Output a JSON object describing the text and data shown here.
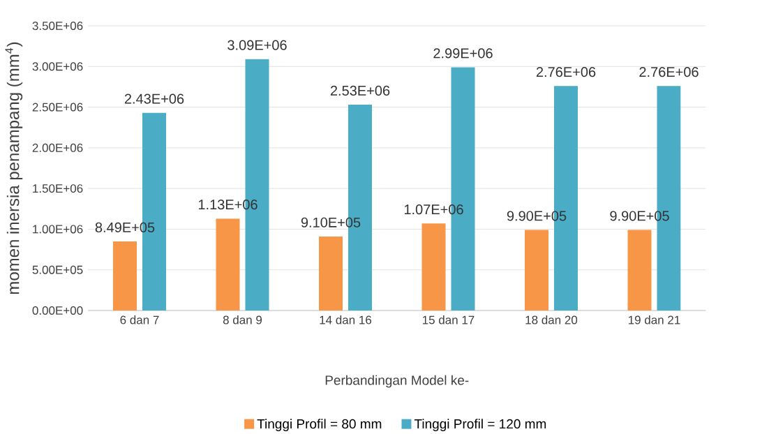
{
  "chart_data": {
    "type": "bar",
    "xlabel": "Perbandingan Model ke-",
    "ylabel": "momen inersia penampang (mm$^{4}$)",
    "categories": [
      "6 dan 7",
      "8 dan 9",
      "14 dan 16",
      "15 dan 17",
      "18 dan 20",
      "19 dan 21"
    ],
    "series": [
      {
        "name": "Tinggi Profil = 80 mm",
        "color": "#f79646",
        "values": [
          849000,
          1130000,
          910000,
          1070000,
          990000,
          990000
        ],
        "value_labels": [
          "8.49E+05",
          "1.13E+06",
          "9.10E+05",
          "1.07E+06",
          "9.90E+05",
          "9.90E+05"
        ]
      },
      {
        "name": "Tinggi Profil = 120 mm",
        "color": "#4bacc6",
        "values": [
          2430000,
          3090000,
          2530000,
          2990000,
          2760000,
          2760000
        ],
        "value_labels": [
          "2.43E+06",
          "3.09E+06",
          "2.53E+06",
          "2.99E+06",
          "2.76E+06",
          "2.76E+06"
        ]
      }
    ],
    "ylim": [
      0,
      3500000
    ],
    "yticks": [
      {
        "value": 0,
        "label": "0.00E+00"
      },
      {
        "value": 500000,
        "label": "5.00E+05"
      },
      {
        "value": 1000000,
        "label": "1.00E+06"
      },
      {
        "value": 1500000,
        "label": "1.50E+06"
      },
      {
        "value": 2000000,
        "label": "2.00E+06"
      },
      {
        "value": 2500000,
        "label": "2.50E+06"
      },
      {
        "value": 3000000,
        "label": "3.00E+06"
      },
      {
        "value": 3500000,
        "label": "3.50E+06"
      }
    ],
    "grid": "y",
    "legend": "bottom"
  }
}
